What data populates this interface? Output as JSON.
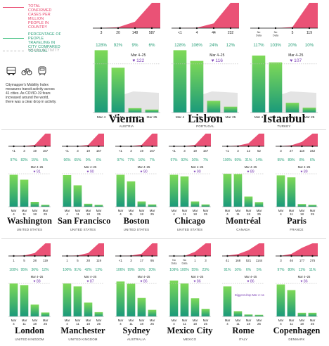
{
  "legend": {
    "cases": "TOTAL CONFIRMED CASES PER MILLION PEOPLE IN COUNTRY",
    "travel": "PERCENTAGE OF PEOPLE TRAVELING IN CITY COMPARED TO USUAL",
    "usual": "USUAL ACTIVITY",
    "icons": [
      "bus-icon",
      "bike-icon",
      "metro-icon"
    ],
    "note": "Citymapper's Mobility Index measures transit activity across 41 cities. As COVID-19 fears increased around the world, there was a clear drop in activity."
  },
  "colors": {
    "cases": "#e8436a",
    "bar_top": "#7ed957",
    "bar_bottom": "#1a9a7a",
    "pct": "#2aa07a",
    "gap": "#7b3fb5",
    "usual": "#bdbdbd"
  },
  "chart_data": [
    {
      "city": "Vienna",
      "country": "AUSTRIA",
      "type": "bar",
      "big": true,
      "cases": {
        "x": [
          "3",
          "20",
          "148",
          "587"
        ],
        "values": [
          3,
          20,
          148,
          587
        ]
      },
      "categories": [
        "Mar 4",
        "Mar 11",
        "Mar 18",
        "Mar 25"
      ],
      "values": [
        128,
        92,
        9,
        6
      ],
      "pct_labels": [
        "128%",
        "92%",
        "9%",
        "6%"
      ],
      "drop": {
        "label": "Mar 4–25",
        "value": "122"
      },
      "note": ""
    },
    {
      "city": "Lisbon",
      "country": "PORTUGAL",
      "type": "bar",
      "big": true,
      "cases": {
        "x": [
          "<1",
          "4",
          "44",
          "232"
        ],
        "values": [
          0.5,
          4,
          44,
          232
        ]
      },
      "categories": [
        "Mar 4",
        "Mar 11",
        "Mar 18",
        "Mar 25"
      ],
      "values": [
        128,
        106,
        24,
        12
      ],
      "pct_labels": [
        "128%",
        "106%",
        "24%",
        "12%"
      ],
      "drop": {
        "label": "Mar 4–25",
        "value": "116"
      },
      "note": ""
    },
    {
      "city": "Istanbul",
      "country": "TURKEY",
      "type": "bar",
      "big": true,
      "cases": {
        "x": [
          "No Data",
          "No Data",
          "5",
          "119"
        ],
        "values": [
          0,
          0,
          5,
          119
        ]
      },
      "categories": [
        "Mar 4",
        "Mar 11",
        "Mar 18",
        "Mar 25"
      ],
      "values": [
        117,
        103,
        20,
        10
      ],
      "pct_labels": [
        "117%",
        "103%",
        "20%",
        "10%"
      ],
      "drop": {
        "label": "Mar 4–25",
        "value": "107"
      },
      "note": ""
    },
    {
      "city": "Washington",
      "country": "UNITED STATES",
      "type": "bar",
      "big": false,
      "cases": {
        "x": [
          "<1",
          "3",
          "19",
          "167"
        ],
        "values": [
          0.5,
          3,
          19,
          167
        ]
      },
      "categories": [
        "Mar 4",
        "Mar 11",
        "Mar 18",
        "Mar 25"
      ],
      "values": [
        97,
        82,
        15,
        6
      ],
      "pct_labels": [
        "97%",
        "82%",
        "15%",
        "6%"
      ],
      "drop": {
        "label": "Mar 4–25",
        "value": "91"
      },
      "note": ""
    },
    {
      "city": "San Francisco",
      "country": "UNITED STATES",
      "type": "bar",
      "big": false,
      "cases": {
        "x": [
          "<1",
          "3",
          "19",
          "167"
        ],
        "values": [
          0.5,
          3,
          19,
          167
        ]
      },
      "categories": [
        "Mar 4",
        "Mar 11",
        "Mar 18",
        "Mar 25"
      ],
      "values": [
        96,
        65,
        9,
        6
      ],
      "pct_labels": [
        "96%",
        "65%",
        "9%",
        "6%"
      ],
      "drop": {
        "label": "Mar 4–25",
        "value": "90"
      },
      "note": ""
    },
    {
      "city": "Boston",
      "country": "UNITED STATES",
      "type": "bar",
      "big": false,
      "cases": {
        "x": [
          "<1",
          "3",
          "19",
          "167"
        ],
        "values": [
          0.5,
          3,
          19,
          167
        ]
      },
      "categories": [
        "Mar 4",
        "Mar 11",
        "Mar 18",
        "Mar 25"
      ],
      "values": [
        97,
        77,
        16,
        7
      ],
      "pct_labels": [
        "97%",
        "77%",
        "16%",
        "7%"
      ],
      "drop": {
        "label": "Mar 4–25",
        "value": "90"
      },
      "note": ""
    },
    {
      "city": "Chicago",
      "country": "UNITED STATES",
      "type": "bar",
      "big": false,
      "cases": {
        "x": [
          "<1",
          "3",
          "19",
          "167"
        ],
        "values": [
          0.5,
          3,
          19,
          167
        ]
      },
      "categories": [
        "Mar 4",
        "Mar 11",
        "Mar 18",
        "Mar 25"
      ],
      "values": [
        97,
        92,
        16,
        7
      ],
      "pct_labels": [
        "97%",
        "92%",
        "16%",
        "7%"
      ],
      "drop": {
        "label": "Mar 4–25",
        "value": "90"
      },
      "note": ""
    },
    {
      "city": "Montréal",
      "country": "CANADA",
      "type": "bar",
      "big": false,
      "cases": {
        "x": [
          "<1",
          "3",
          "12",
          "52"
        ],
        "values": [
          0.5,
          3,
          12,
          52
        ]
      },
      "categories": [
        "Mar 4",
        "Mar 11",
        "Mar 18",
        "Mar 25"
      ],
      "values": [
        100,
        99,
        31,
        14
      ],
      "pct_labels": [
        "100%",
        "99%",
        "31%",
        "14%"
      ],
      "drop": {
        "label": "Mar 4–25",
        "value": "89"
      },
      "note": ""
    },
    {
      "city": "Paris",
      "country": "FRANCE",
      "type": "bar",
      "big": false,
      "cases": {
        "x": [
          "3",
          "27",
          "118",
          "342"
        ],
        "values": [
          3,
          27,
          118,
          342
        ]
      },
      "categories": [
        "Mar 4",
        "Mar 11",
        "Mar 18",
        "Mar 25"
      ],
      "values": [
        95,
        89,
        8,
        6
      ],
      "pct_labels": [
        "95%",
        "89%",
        "8%",
        "6%"
      ],
      "drop": {
        "label": "Mar 4–25",
        "value": "89"
      },
      "note": ""
    },
    {
      "city": "London",
      "country": "UNITED KINGDOM",
      "type": "bar",
      "big": false,
      "cases": {
        "x": [
          "1",
          "5",
          "28",
          "119"
        ],
        "values": [
          1,
          5,
          28,
          119
        ]
      },
      "categories": [
        "Mar 4",
        "Mar 11",
        "Mar 18",
        "Mar 25"
      ],
      "values": [
        100,
        95,
        36,
        12
      ],
      "pct_labels": [
        "100%",
        "95%",
        "36%",
        "12%"
      ],
      "drop": {
        "label": "Mar 4–25",
        "value": "88"
      },
      "note": ""
    },
    {
      "city": "Manchester",
      "country": "UNITED KINGDOM",
      "type": "bar",
      "big": false,
      "cases": {
        "x": [
          "1",
          "5",
          "28",
          "119"
        ],
        "values": [
          1,
          5,
          28,
          119
        ]
      },
      "categories": [
        "Mar 4",
        "Mar 11",
        "Mar 18",
        "Mar 25"
      ],
      "values": [
        100,
        91,
        42,
        13
      ],
      "pct_labels": [
        "100%",
        "91%",
        "42%",
        "13%"
      ],
      "drop": {
        "label": "Mar 4–25",
        "value": "87"
      },
      "note": ""
    },
    {
      "city": "Sydney",
      "country": "AUSTRALIA",
      "type": "bar",
      "big": false,
      "cases": {
        "x": [
          "<1",
          "3",
          "17",
          "95"
        ],
        "values": [
          0.5,
          3,
          17,
          95
        ]
      },
      "categories": [
        "Mar 4",
        "Mar 11",
        "Mar 18",
        "Mar 25"
      ],
      "values": [
        106,
        99,
        56,
        20
      ],
      "pct_labels": [
        "106%",
        "99%",
        "56%",
        "20%"
      ],
      "drop": {
        "label": "Mar 4–25",
        "value": "86"
      },
      "note": ""
    },
    {
      "city": "Mexico City",
      "country": "MEXICO",
      "type": "bar",
      "big": false,
      "cases": {
        "x": [
          "No Data",
          "No Data",
          "1",
          "3"
        ],
        "values": [
          0,
          0,
          1,
          3
        ]
      },
      "categories": [
        "Mar 4",
        "Mar 11",
        "Mar 18",
        "Mar 25"
      ],
      "values": [
        109,
        100,
        55,
        23
      ],
      "pct_labels": [
        "109%",
        "100%",
        "55%",
        "23%"
      ],
      "drop": {
        "label": "Mar 4–25",
        "value": "86"
      },
      "note": ""
    },
    {
      "city": "Rome",
      "country": "ITALY",
      "type": "bar",
      "big": false,
      "cases": {
        "x": [
          "41",
          "168",
          "521",
          "1144"
        ],
        "values": [
          41,
          168,
          521,
          1144
        ]
      },
      "categories": [
        "Mar 4",
        "Mar 11",
        "Mar 18",
        "Mar 25"
      ],
      "values": [
        91,
        16,
        6,
        5
      ],
      "pct_labels": [
        "91%",
        "16%",
        "6%",
        "5%"
      ],
      "drop": {
        "label": "Mar 4–25",
        "value": "86"
      },
      "note": "Biggest drop Mar 4–11"
    },
    {
      "city": "Copenhagen",
      "country": "DENMARK",
      "type": "bar",
      "big": false,
      "cases": {
        "x": [
          "3",
          "46",
          "177",
          "275"
        ],
        "values": [
          3,
          46,
          177,
          275
        ]
      },
      "categories": [
        "Mar 4",
        "Mar 11",
        "Mar 18",
        "Mar 25"
      ],
      "values": [
        97,
        80,
        11,
        11
      ],
      "pct_labels": [
        "97%",
        "80%",
        "11%",
        "11%"
      ],
      "drop": {
        "label": "Mar 4–25",
        "value": "86"
      },
      "note": ""
    }
  ]
}
